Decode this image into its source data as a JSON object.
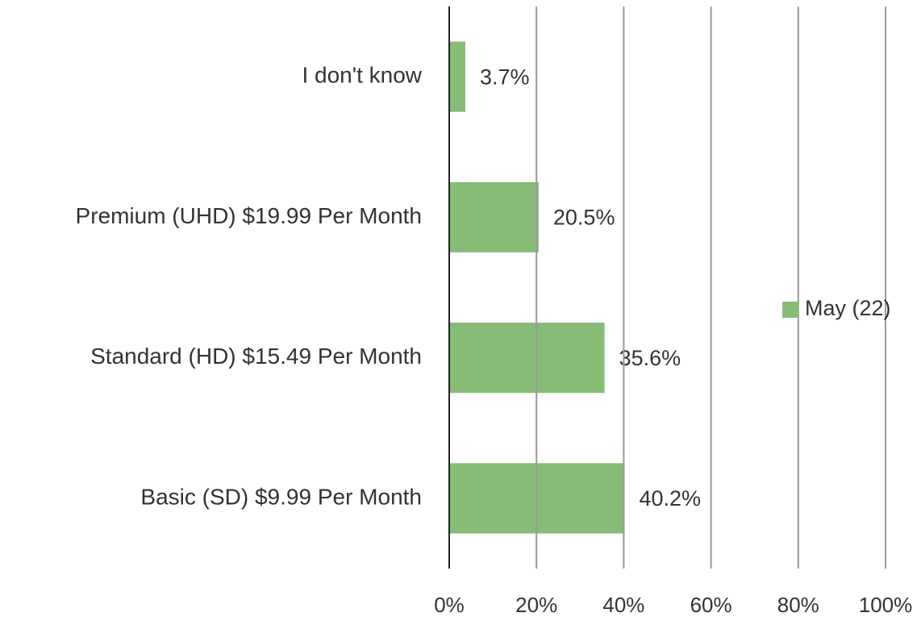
{
  "chart_data": {
    "type": "barh",
    "categories": [
      "I don't know",
      "Premium (UHD) $19.99 Per Month",
      "Standard (HD) $15.49 Per Month",
      "Basic (SD) $9.99 Per Month"
    ],
    "series": [
      {
        "name": "May (22)",
        "color": "#86bc76",
        "values": [
          3.7,
          20.5,
          35.6,
          40.2
        ],
        "value_labels": [
          "3.7%",
          "20.5%",
          "35.6%",
          "40.2%"
        ]
      }
    ],
    "xlim": [
      0,
      100
    ],
    "xticks": [
      {
        "value": 0,
        "label": "0%"
      },
      {
        "value": 20,
        "label": "20%"
      },
      {
        "value": 40,
        "label": "40%"
      },
      {
        "value": 60,
        "label": "60%"
      },
      {
        "value": 80,
        "label": "80%"
      },
      {
        "value": 100,
        "label": "100%"
      }
    ],
    "grid": true,
    "legend": "right"
  }
}
